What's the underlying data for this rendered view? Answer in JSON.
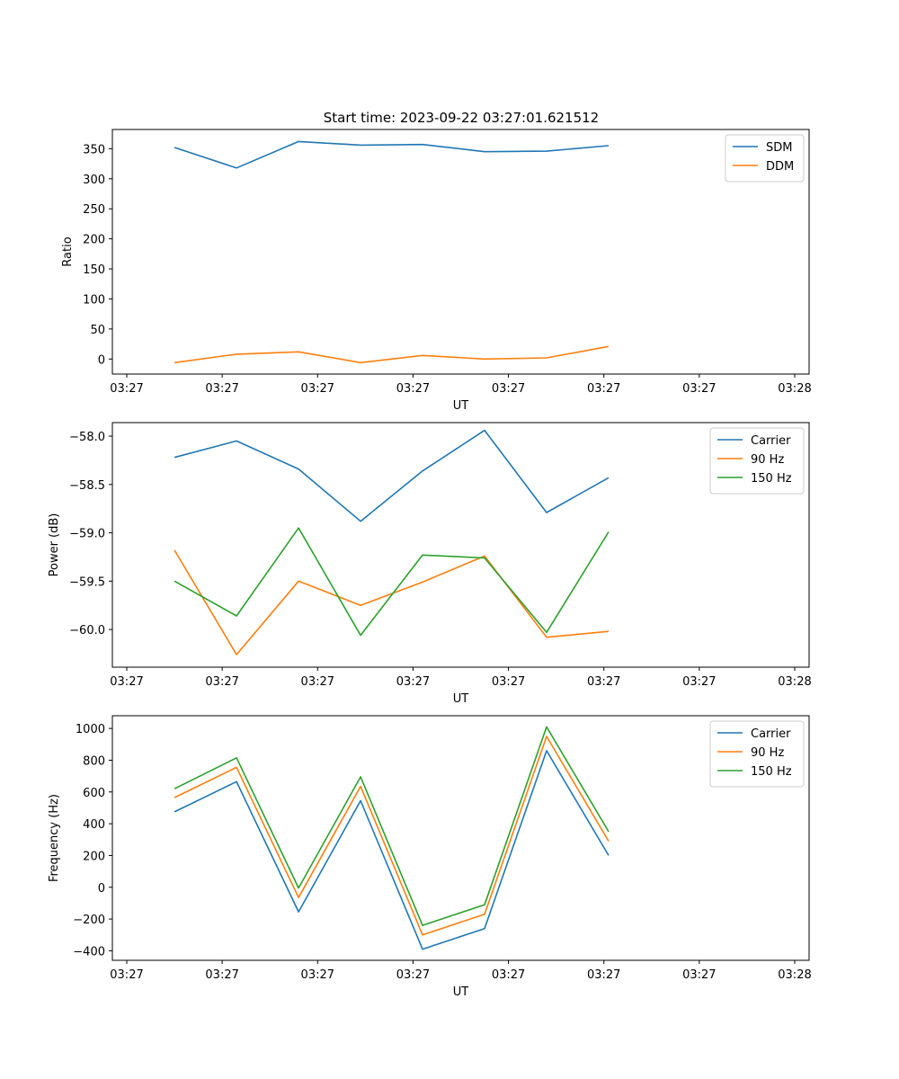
{
  "figure": {
    "suptitle": "Start time: 2023-09-22 03:27:01.621512"
  },
  "chart_data": [
    {
      "type": "line",
      "title": "Start time: 2023-09-22 03:27:01.621512",
      "xlabel": "UT",
      "ylabel": "Ratio",
      "xticks": [
        "03:27",
        "03:27",
        "03:27",
        "03:27",
        "03:27",
        "03:27",
        "03:27",
        "03:28"
      ],
      "xlim": [
        0,
        7
      ],
      "x": [
        0.5,
        1.15,
        1.8,
        2.45,
        3.1,
        3.75,
        4.4,
        5.05
      ],
      "yticks": [
        0,
        50,
        100,
        150,
        200,
        250,
        300,
        350
      ],
      "ylim": [
        -25,
        382
      ],
      "legend": "top-right",
      "series": [
        {
          "name": "SDM",
          "color": "#1f77b4",
          "values": [
            352,
            318,
            362,
            356,
            357,
            345,
            346,
            355
          ]
        },
        {
          "name": "DDM",
          "color": "#ff7f0e",
          "values": [
            -6,
            8,
            12,
            -6,
            6,
            0,
            2,
            21
          ]
        }
      ]
    },
    {
      "type": "line",
      "title": "",
      "xlabel": "UT",
      "ylabel": "Power (dB)",
      "xticks": [
        "03:27",
        "03:27",
        "03:27",
        "03:27",
        "03:27",
        "03:27",
        "03:27",
        "03:28"
      ],
      "xlim": [
        0,
        7
      ],
      "x": [
        0.5,
        1.15,
        1.8,
        2.45,
        3.1,
        3.75,
        4.4,
        5.05
      ],
      "yticks": [
        -58.0,
        -58.5,
        -59.0,
        -59.5,
        -60.0
      ],
      "ytick_labels": [
        "−58.0",
        "−58.5",
        "−59.0",
        "−59.5",
        "−60.0"
      ],
      "ylim": [
        -60.39,
        -57.86
      ],
      "legend": "top-right",
      "series": [
        {
          "name": "Carrier",
          "color": "#1f77b4",
          "values": [
            -58.22,
            -58.05,
            -58.34,
            -58.88,
            -58.36,
            -57.94,
            -58.79,
            -58.43
          ]
        },
        {
          "name": "90 Hz",
          "color": "#ff7f0e",
          "values": [
            -59.18,
            -60.26,
            -59.5,
            -59.75,
            -59.51,
            -59.24,
            -60.08,
            -60.02
          ]
        },
        {
          "name": "150 Hz",
          "color": "#2ca02c",
          "values": [
            -59.5,
            -59.86,
            -58.95,
            -60.06,
            -59.23,
            -59.26,
            -60.03,
            -58.99
          ]
        }
      ]
    },
    {
      "type": "line",
      "title": "",
      "xlabel": "UT",
      "ylabel": "Frequency (Hz)",
      "xticks": [
        "03:27",
        "03:27",
        "03:27",
        "03:27",
        "03:27",
        "03:27",
        "03:27",
        "03:28"
      ],
      "xlim": [
        0,
        7
      ],
      "x": [
        0.5,
        1.15,
        1.8,
        2.45,
        3.1,
        3.75,
        4.4,
        5.05
      ],
      "yticks": [
        1000,
        800,
        600,
        400,
        200,
        0,
        -200,
        -400
      ],
      "ytick_labels": [
        "1000",
        "800",
        "600",
        "400",
        "200",
        "0",
        "−200",
        "−400"
      ],
      "ylim": [
        -460,
        1080
      ],
      "legend": "top-right",
      "series": [
        {
          "name": "Carrier",
          "color": "#1f77b4",
          "values": [
            475,
            665,
            -155,
            545,
            -390,
            -260,
            860,
            200
          ]
        },
        {
          "name": "90 Hz",
          "color": "#ff7f0e",
          "values": [
            565,
            755,
            -65,
            635,
            -300,
            -170,
            950,
            290
          ]
        },
        {
          "name": "150 Hz",
          "color": "#2ca02c",
          "values": [
            620,
            815,
            -5,
            695,
            -240,
            -110,
            1010,
            350
          ]
        }
      ]
    }
  ]
}
